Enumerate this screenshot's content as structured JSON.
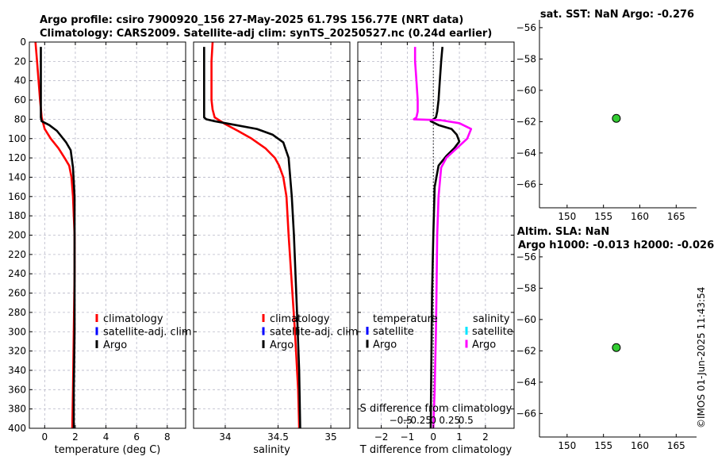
{
  "figure": {
    "title_line1": "Argo profile: csiro 7900920_156 27-May-2025 61.79S 156.77E (NRT data)",
    "title_line2": "Climatology: CARS2009. Satellite-adj clim: synTS_20250527.nc (0.24d earlier)",
    "stamp": "©IMOS 01-Jun-2025 11:43:54"
  },
  "colors": {
    "climatology": "#ff0000",
    "satellite": "#0000ff",
    "argo": "#000000",
    "sal_satellite": "#00e5ff",
    "sal_argo": "#ff00ff",
    "dot": "#33cc33",
    "grid": "#b8b8c8"
  },
  "chart_data": [
    {
      "id": "temperature",
      "type": "line",
      "xlabel": "temperature (deg C)",
      "xlim": [
        -1,
        9.2
      ],
      "xticks": [
        0,
        2,
        4,
        6,
        8
      ],
      "ylim": [
        400,
        0
      ],
      "yticks": [
        0,
        20,
        40,
        60,
        80,
        100,
        120,
        140,
        160,
        180,
        200,
        220,
        240,
        260,
        280,
        300,
        320,
        340,
        360,
        380,
        400
      ],
      "legend": [
        "climatology",
        "satellite-adj. clim",
        "Argo"
      ],
      "series": [
        {
          "name": "climatology",
          "color": "#ff0000",
          "x": [
            -0.6,
            -0.5,
            -0.4,
            -0.3,
            -0.2,
            0.0,
            0.4,
            0.9,
            1.3,
            1.6,
            1.75,
            1.85,
            1.9,
            1.95,
            1.95,
            1.9,
            1.85,
            1.8
          ],
          "y": [
            0,
            20,
            40,
            60,
            78,
            90,
            100,
            110,
            120,
            128,
            140,
            160,
            180,
            200,
            240,
            300,
            360,
            400
          ]
        },
        {
          "name": "Argo",
          "color": "#000000",
          "x": [
            -0.25,
            -0.25,
            -0.25,
            -0.25,
            -0.2,
            0.3,
            0.8,
            1.4,
            1.7,
            1.85,
            1.95,
            1.95,
            1.95,
            1.9,
            1.9
          ],
          "y": [
            5,
            40,
            60,
            78,
            82,
            86,
            92,
            104,
            112,
            130,
            160,
            200,
            300,
            360,
            400
          ]
        }
      ]
    },
    {
      "id": "salinity",
      "type": "line",
      "xlabel": "salinity",
      "xlim": [
        33.7,
        35.18
      ],
      "xticks": [
        34,
        34.5,
        35
      ],
      "xticklabels": [
        "34",
        "34.5",
        "35"
      ],
      "ylim": [
        400,
        0
      ],
      "legend": [
        "climatology",
        "satellite-adj. clim",
        "Argo"
      ],
      "series": [
        {
          "name": "climatology",
          "color": "#ff0000",
          "x": [
            33.88,
            33.87,
            33.87,
            33.87,
            33.88,
            33.9,
            34.0,
            34.12,
            34.25,
            34.38,
            34.47,
            34.51,
            34.55,
            34.58,
            34.6,
            34.63,
            34.66,
            34.69,
            34.7
          ],
          "y": [
            0,
            20,
            40,
            60,
            70,
            78,
            85,
            92,
            100,
            110,
            120,
            128,
            140,
            160,
            200,
            250,
            300,
            360,
            400
          ]
        },
        {
          "name": "Argo",
          "color": "#000000",
          "x": [
            33.8,
            33.8,
            33.8,
            33.8,
            33.82,
            33.9,
            34.1,
            34.3,
            34.45,
            34.55,
            34.6,
            34.63,
            34.65,
            34.68,
            34.7,
            34.71
          ],
          "y": [
            5,
            40,
            60,
            78,
            80,
            82,
            86,
            90,
            96,
            104,
            120,
            160,
            200,
            280,
            340,
            400
          ]
        }
      ]
    },
    {
      "id": "difference",
      "type": "line",
      "xlabel": "T difference from climatology",
      "xlabel_top": "S difference from climatology",
      "xlim": [
        -2.9,
        3.1
      ],
      "xticks": [
        -2,
        -1,
        0,
        1,
        2
      ],
      "top_ticks": [
        -0.5,
        -0.25,
        0,
        0.25,
        0.5
      ],
      "top_ticklabels": [
        "-0.5",
        "-0.25",
        "0",
        "0.25",
        "0.5"
      ],
      "top_scale": 2.5,
      "ylim": [
        400,
        0
      ],
      "legend_t_title": "temperature",
      "legend_s_title": "salinity",
      "legend_t": [
        "satellite",
        "Argo"
      ],
      "legend_s": [
        "satellite",
        "Argo"
      ],
      "series": [
        {
          "name": "T Argo",
          "color": "#000000",
          "x": [
            0.35,
            0.3,
            0.25,
            0.2,
            0.15,
            0.1,
            0.0,
            -0.1,
            0.2,
            0.7,
            0.9,
            1.0,
            0.8,
            0.5,
            0.2,
            0.05,
            0.0,
            -0.05,
            -0.08,
            -0.1
          ],
          "y": [
            5,
            20,
            40,
            60,
            72,
            78,
            80,
            82,
            86,
            90,
            96,
            103,
            110,
            118,
            128,
            150,
            200,
            260,
            340,
            400
          ]
        },
        {
          "name": "S Argo",
          "color": "#ff00ff",
          "x": [
            -0.7,
            -0.7,
            -0.65,
            -0.6,
            -0.6,
            -0.65,
            -0.75,
            0.3,
            1.0,
            1.45,
            1.3,
            0.9,
            0.5,
            0.3,
            0.2,
            0.15,
            0.12,
            0.1,
            0.05,
            0.0
          ],
          "y": [
            5,
            20,
            40,
            60,
            72,
            78,
            80,
            81,
            84,
            90,
            100,
            110,
            120,
            130,
            160,
            200,
            260,
            300,
            360,
            400
          ]
        }
      ]
    },
    {
      "id": "sst_map",
      "type": "scatter",
      "title": "sat. SST: NaN  Argo: -0.276",
      "xlim": [
        146.2,
        167.8
      ],
      "ylim": [
        -67.5,
        -55.5
      ],
      "xticks": [
        150,
        155,
        160,
        165
      ],
      "yticks": [
        -56,
        -58,
        -60,
        -62,
        -64,
        -66
      ],
      "points": [
        {
          "x": 156.77,
          "y": -61.79
        }
      ]
    },
    {
      "id": "sla_map",
      "type": "scatter",
      "title": "Altim. SLA: NaN",
      "subtitle": "Argo h1000: -0.013  h2000: -0.026",
      "xlim": [
        146.2,
        167.8
      ],
      "ylim": [
        -67.5,
        -55.5
      ],
      "xticks": [
        150,
        155,
        160,
        165
      ],
      "yticks": [
        -56,
        -58,
        -60,
        -62,
        -64,
        -66
      ],
      "points": [
        {
          "x": 156.77,
          "y": -61.79
        }
      ]
    }
  ]
}
